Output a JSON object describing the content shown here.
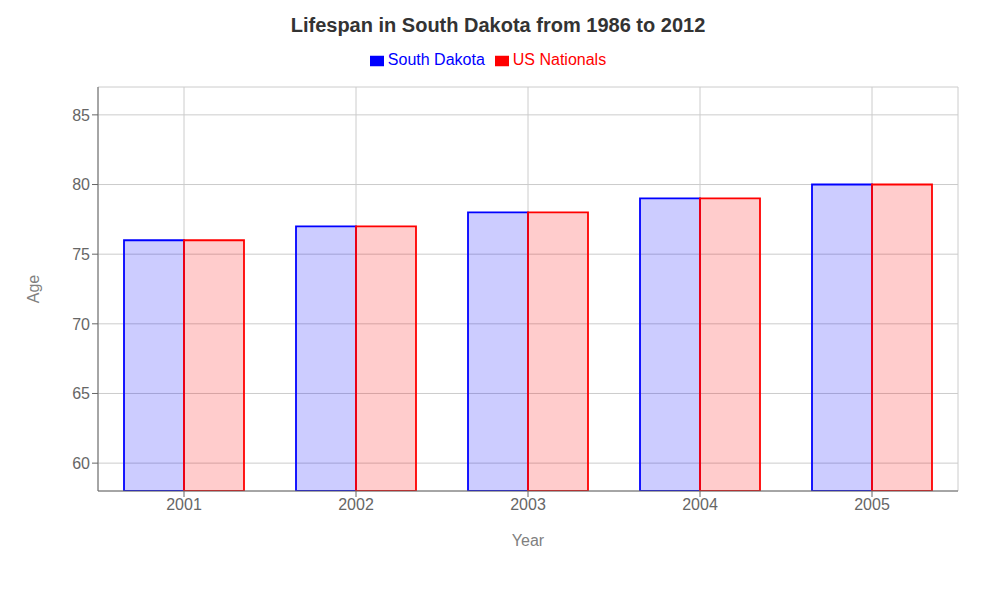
{
  "chart_data": {
    "type": "bar",
    "title": "Lifespan in South Dakota from 1986 to 2012",
    "xlabel": "Year",
    "ylabel": "Age",
    "categories": [
      "2001",
      "2002",
      "2003",
      "2004",
      "2005"
    ],
    "series": [
      {
        "name": "South Dakota",
        "color": "#0000ff",
        "values": [
          76,
          77,
          78,
          79,
          80
        ]
      },
      {
        "name": "US Nationals",
        "color": "#ff0000",
        "values": [
          76,
          77,
          78,
          79,
          80
        ]
      }
    ],
    "ylim": [
      58,
      87
    ],
    "yticks": [
      60,
      65,
      70,
      75,
      80,
      85
    ],
    "grid": true,
    "legend": "top"
  }
}
